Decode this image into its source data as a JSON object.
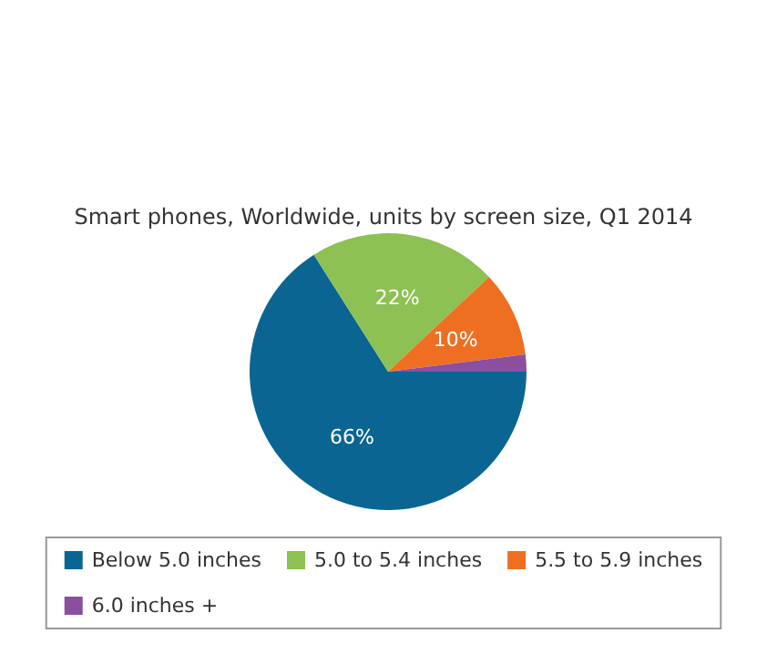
{
  "chart_data": {
    "type": "pie",
    "title": "Smart phones, Worldwide, units by screen size, Q1 2014",
    "categories": [
      "Below 5.0 inches",
      "5.0 to 5.4 inches",
      "5.5 to 5.9 inches",
      "6.0 inches +"
    ],
    "values": [
      66,
      22,
      10,
      2
    ],
    "value_labels": [
      "66%",
      "22%",
      "10%",
      null
    ],
    "colors": [
      "#0b6593",
      "#8dc153",
      "#ef6f22",
      "#8b4f9f"
    ],
    "legend": "bottom"
  }
}
